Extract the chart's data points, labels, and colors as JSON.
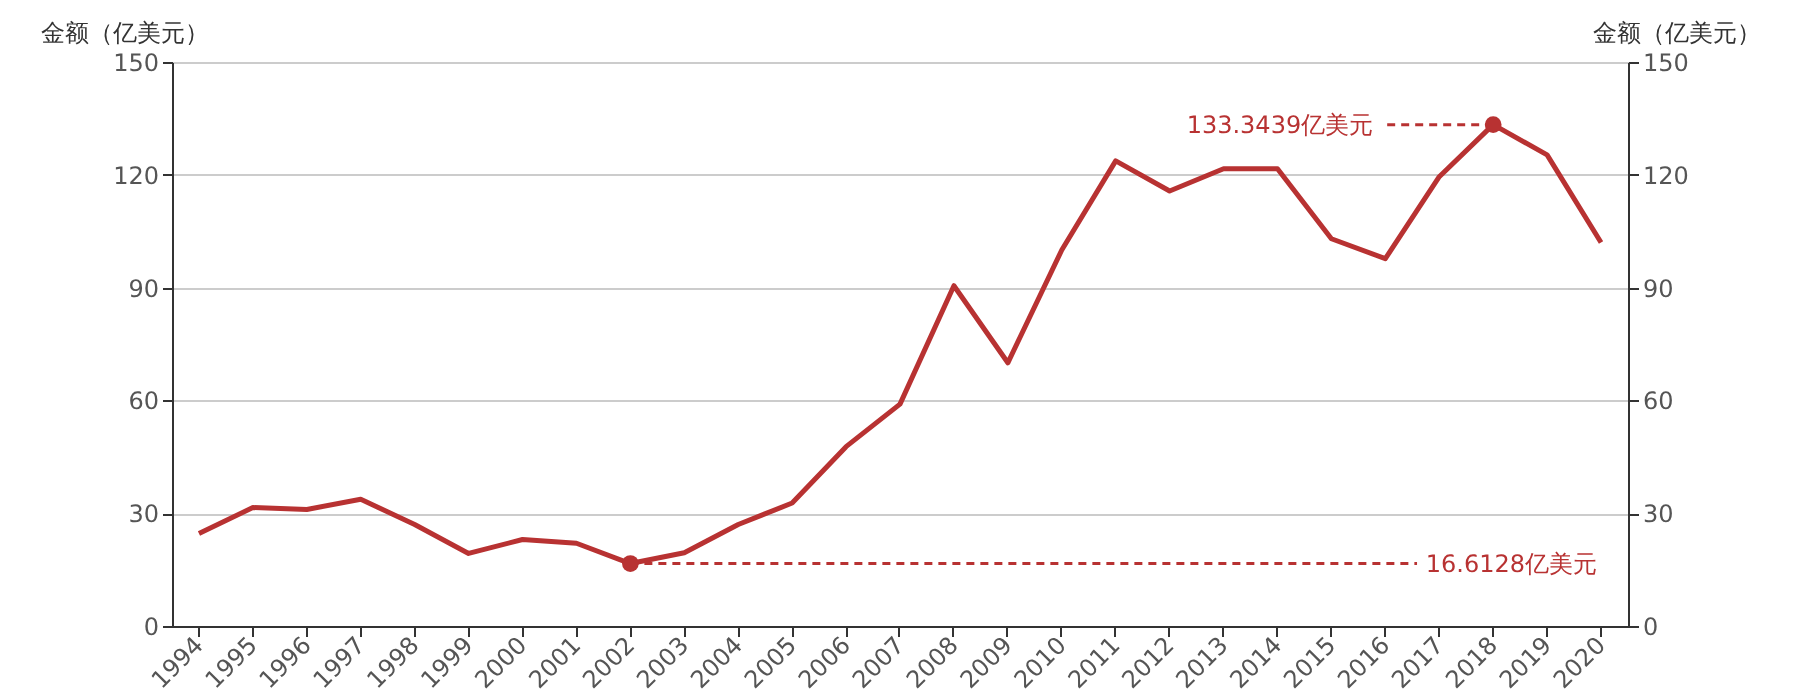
{
  "chart_data": {
    "type": "line",
    "ylabel": "金额（亿美元）",
    "y2label": "金额（亿美元）",
    "categories": [
      "1994",
      "1995",
      "1996",
      "1997",
      "1998",
      "1999",
      "2000",
      "2001",
      "2002",
      "2003",
      "2004",
      "2005",
      "2006",
      "2007",
      "2008",
      "2009",
      "2010",
      "2011",
      "2012",
      "2013",
      "2014",
      "2015",
      "2016",
      "2017",
      "2018",
      "2019",
      "2020"
    ],
    "series": [
      {
        "color": "#b83232",
        "values": [
          24.6,
          31.5,
          31,
          33.7,
          27,
          19.3,
          23,
          22,
          16.6128,
          19.5,
          27,
          32.7,
          47.7,
          59,
          90.5,
          70,
          100,
          123.7,
          115.7,
          121.6,
          121.6,
          103,
          97.7,
          119.5,
          133.3439,
          125.3,
          102
        ]
      }
    ],
    "ylim": [
      0,
      150
    ],
    "yticks": [
      0,
      30,
      60,
      90,
      120,
      150
    ],
    "y2lim": [
      0,
      150
    ],
    "y2ticks": [
      0,
      30,
      60,
      90,
      120,
      150
    ],
    "grid": "y",
    "ref_lines": [
      {
        "axis": "y",
        "value": 133.3439,
        "label": "133.3439亿美元",
        "color": "#b83232",
        "line_style": "dashed"
      },
      {
        "axis": "y",
        "value": 16.6128,
        "label": "16.6128亿美元",
        "color": "#b83232",
        "line_style": "dashed"
      }
    ]
  }
}
